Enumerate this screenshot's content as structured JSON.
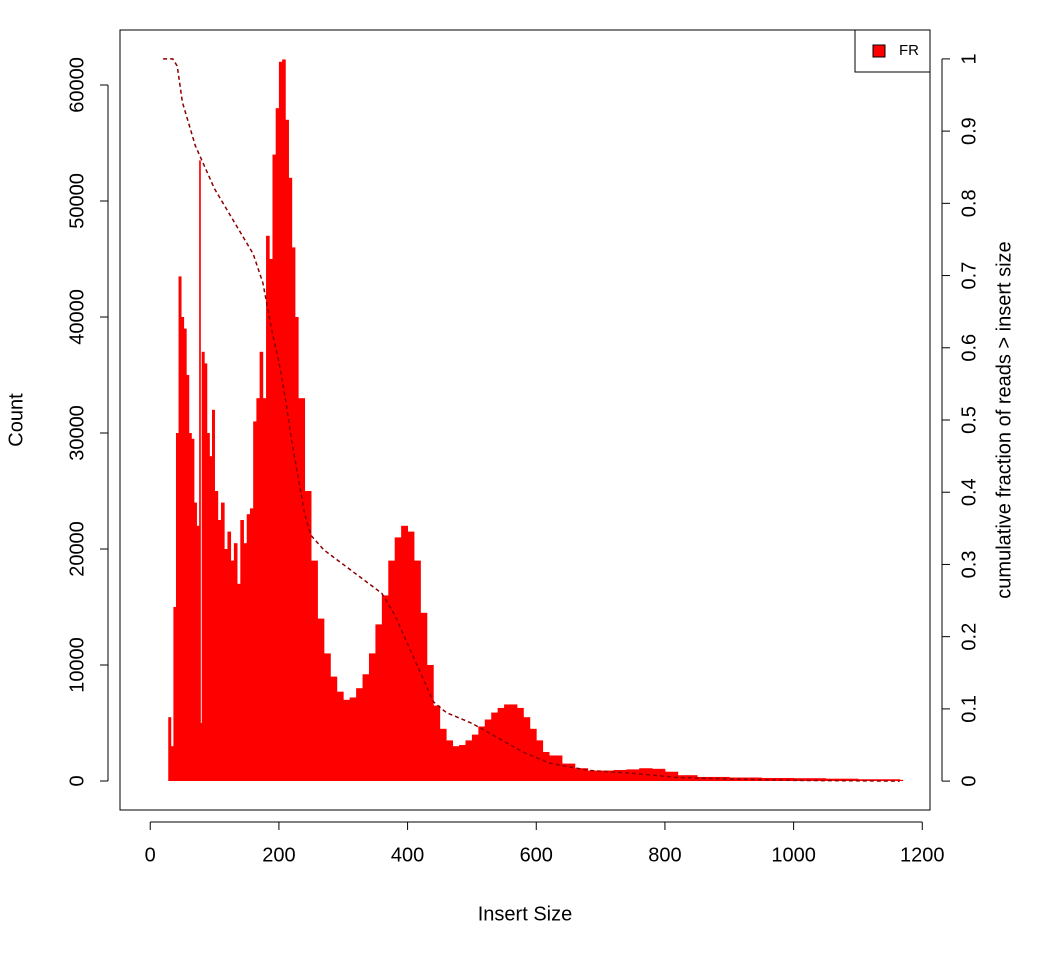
{
  "chart_data": {
    "type": "bar",
    "x_label": "Insert Size",
    "y_label": "Count",
    "y2_label": "cumulative fraction of reads > insert size",
    "x": [
      20,
      25,
      28,
      32,
      36,
      40,
      44,
      48,
      52,
      56,
      60,
      64,
      68,
      72,
      76,
      78,
      80,
      84,
      88,
      92,
      96,
      100,
      105,
      110,
      115,
      120,
      125,
      130,
      135,
      140,
      145,
      150,
      155,
      160,
      165,
      170,
      175,
      180,
      185,
      190,
      195,
      200,
      205,
      210,
      215,
      220,
      225,
      230,
      240,
      250,
      260,
      270,
      280,
      290,
      300,
      310,
      320,
      330,
      340,
      350,
      360,
      370,
      380,
      390,
      400,
      410,
      420,
      430,
      440,
      450,
      460,
      470,
      480,
      490,
      500,
      510,
      520,
      530,
      540,
      550,
      560,
      570,
      580,
      590,
      600,
      610,
      620,
      640,
      660,
      680,
      700,
      720,
      740,
      760,
      780,
      800,
      820,
      850,
      900,
      950,
      1000,
      1050,
      1100,
      1165
    ],
    "series": [
      {
        "name": "FR",
        "color": "#ff0000",
        "values": [
          0,
          0,
          5500,
          3000,
          15000,
          30000,
          43500,
          40000,
          39000,
          35000,
          30000,
          29500,
          24000,
          22000,
          53500,
          5000,
          37000,
          36000,
          30000,
          28000,
          32000,
          25000,
          22500,
          24000,
          20000,
          21500,
          19000,
          20500,
          17000,
          22500,
          20500,
          23000,
          23500,
          31000,
          33000,
          37000,
          33000,
          47000,
          45000,
          54000,
          58000,
          62000,
          62200,
          57000,
          52000,
          46000,
          40000,
          33000,
          25000,
          19000,
          14000,
          11000,
          9000,
          7700,
          7000,
          7200,
          8000,
          9200,
          11000,
          13500,
          16000,
          19000,
          21000,
          22000,
          21500,
          19000,
          14500,
          10000,
          6500,
          4500,
          3500,
          3000,
          3100,
          3500,
          4000,
          4700,
          5300,
          5900,
          6300,
          6600,
          6600,
          6300,
          5500,
          4500,
          3500,
          2500,
          2200,
          1500,
          1100,
          900,
          900,
          950,
          1000,
          1100,
          1050,
          800,
          500,
          350,
          300,
          260,
          240,
          200,
          150,
          100
        ]
      },
      {
        "type": "line",
        "axis": "y2",
        "color": "#8b0000",
        "x": [
          20,
          35,
          42,
          50,
          60,
          70,
          80,
          100,
          120,
          140,
          160,
          175,
          190,
          200,
          210,
          220,
          230,
          240,
          250,
          270,
          300,
          330,
          360,
          380,
          400,
          420,
          440,
          460,
          500,
          540,
          580,
          620,
          680,
          760,
          820,
          900,
          1000,
          1165
        ],
        "values": [
          1,
          1,
          0.99,
          0.94,
          0.91,
          0.88,
          0.86,
          0.82,
          0.79,
          0.76,
          0.73,
          0.69,
          0.62,
          0.58,
          0.53,
          0.47,
          0.42,
          0.37,
          0.34,
          0.32,
          0.3,
          0.28,
          0.26,
          0.23,
          0.19,
          0.15,
          0.11,
          0.095,
          0.08,
          0.06,
          0.04,
          0.025,
          0.015,
          0.01,
          0.005,
          0.003,
          0.001,
          0
        ]
      }
    ],
    "xlim": [
      -47,
      1212
    ],
    "xticks": [
      0,
      200,
      400,
      600,
      800,
      1000,
      1200
    ],
    "ylim": [
      -2500,
      64740
    ],
    "yticks": [
      0,
      10000,
      20000,
      30000,
      40000,
      50000,
      60000
    ],
    "y2lim": [
      -0.04,
      1.04
    ],
    "y2ticks": [
      0,
      0.1,
      0.2,
      0.3,
      0.4,
      0.5,
      0.6,
      0.7,
      0.8,
      0.9,
      1
    ],
    "legend": "topright"
  }
}
